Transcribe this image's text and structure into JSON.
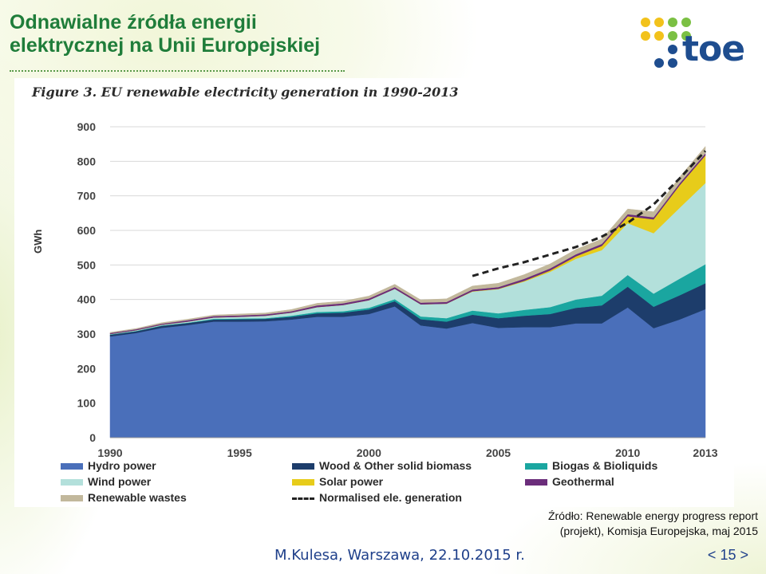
{
  "slide": {
    "title_line1": "Odnawialne źródła energii",
    "title_line2": "elektrycznej na Unii Europejskiej",
    "logo_text": "toe",
    "source_line1": "Źródło: Renewable energy progress report",
    "source_line2": "(projekt), Komisja Europejska, maj 2015",
    "footer_author": "M.Kulesa, Warszawa, 22.10.2015 r.",
    "page_prev": "<",
    "page_number": "15",
    "page_next": ">"
  },
  "colors": {
    "title": "#1f7d3a",
    "footer": "#1e3f8a",
    "logo_yellow": "#f2c21b",
    "logo_green": "#7bc043",
    "logo_blue": "#1e4d8f"
  },
  "chart_data": {
    "type": "area",
    "title": "Figure 3. EU renewable electricity generation in 1990-2013",
    "ylabel": "GWh",
    "xlabel": "",
    "ylim": [
      0,
      900
    ],
    "yticks": [
      0,
      100,
      200,
      300,
      400,
      500,
      600,
      700,
      800,
      900
    ],
    "xtick_labels": [
      "1990",
      "1995",
      "2000",
      "2005",
      "2010",
      "2013"
    ],
    "x": [
      1990,
      1991,
      1992,
      1993,
      1994,
      1995,
      1996,
      1997,
      1998,
      1999,
      2000,
      2001,
      2002,
      2003,
      2004,
      2005,
      2006,
      2007,
      2008,
      2009,
      2010,
      2011,
      2012,
      2013
    ],
    "grid": true,
    "legend_position": "bottom",
    "series": [
      {
        "name": "Hydro power",
        "color": "#4a6fba",
        "values": [
          293,
          303,
          318,
          326,
          336,
          336,
          337,
          342,
          350,
          350,
          358,
          380,
          325,
          316,
          332,
          318,
          320,
          320,
          331,
          331,
          377,
          317,
          342,
          372
        ]
      },
      {
        "name": "Wood & Other solid biomass",
        "color": "#1d3d6b",
        "values": [
          5,
          5,
          6,
          6,
          6,
          7,
          7,
          8,
          10,
          12,
          13,
          15,
          18,
          20,
          24,
          28,
          33,
          38,
          45,
          52,
          60,
          62,
          70,
          75
        ]
      },
      {
        "name": "Biogas & Bioliquids",
        "color": "#1aa6a0",
        "values": [
          1,
          1,
          1,
          1,
          2,
          2,
          2,
          3,
          4,
          4,
          5,
          6,
          8,
          10,
          12,
          14,
          17,
          20,
          24,
          28,
          34,
          38,
          48,
          55
        ]
      },
      {
        "name": "Wind power",
        "color": "#b3e0db",
        "values": [
          1,
          2,
          2,
          3,
          4,
          5,
          7,
          9,
          14,
          18,
          22,
          30,
          35,
          42,
          55,
          70,
          82,
          102,
          118,
          132,
          150,
          175,
          205,
          235
        ]
      },
      {
        "name": "Solar power",
        "color": "#e7cc1a",
        "values": [
          0,
          0,
          0,
          0,
          0,
          0,
          0,
          0,
          0,
          0,
          0,
          0,
          0,
          0,
          1,
          1,
          2,
          4,
          7,
          12,
          20,
          40,
          65,
          80
        ]
      },
      {
        "name": "Geothermal",
        "color": "#6b2d7b",
        "values": [
          3,
          3,
          3,
          4,
          4,
          4,
          4,
          4,
          5,
          5,
          5,
          5,
          5,
          5,
          5,
          5,
          6,
          6,
          6,
          6,
          6,
          6,
          6,
          6
        ]
      },
      {
        "name": "Renewable wastes",
        "color": "#c2b89c",
        "values": [
          2,
          2,
          3,
          3,
          3,
          4,
          4,
          5,
          6,
          6,
          7,
          8,
          8,
          9,
          10,
          11,
          12,
          13,
          14,
          14,
          15,
          16,
          18,
          20
        ]
      }
    ],
    "normalised": {
      "name": "Normalised ele. generation",
      "x": [
        2004,
        2005,
        2006,
        2007,
        2008,
        2009,
        2010,
        2011,
        2012,
        2013
      ],
      "values": [
        468,
        490,
        508,
        530,
        552,
        582,
        622,
        675,
        750,
        830
      ]
    }
  }
}
